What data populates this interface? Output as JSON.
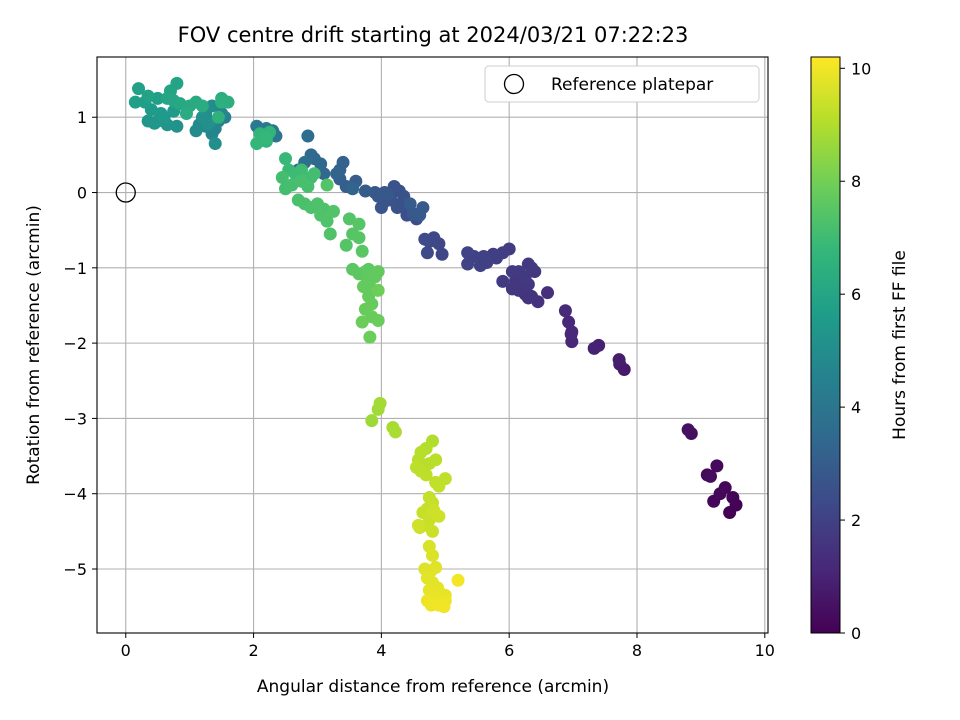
{
  "chart_data": {
    "type": "scatter",
    "title": "FOV centre drift starting at 2024/03/21 07:22:23",
    "xlabel": "Angular distance from reference (arcmin)",
    "ylabel": "Rotation from reference (arcmin)",
    "xlim": [
      -0.45,
      10.05
    ],
    "ylim": [
      -5.85,
      1.8
    ],
    "xticks": [
      0,
      2,
      4,
      6,
      8,
      10
    ],
    "yticks": [
      -5,
      -4,
      -3,
      -2,
      -1,
      0,
      1
    ],
    "grid": true,
    "legend": {
      "placement": "top-right",
      "label": "Reference platepar"
    },
    "reference_point": {
      "x": 0,
      "y": 0
    },
    "colorbar": {
      "label": "Hours from first FF file",
      "colormap": "viridis",
      "range": [
        0,
        10.2
      ],
      "ticks": [
        0,
        2,
        4,
        6,
        8,
        10
      ]
    },
    "colormap_stops": [
      "#440154",
      "#482878",
      "#3e4989",
      "#31688e",
      "#26828e",
      "#1f9e89",
      "#35b779",
      "#6ece58",
      "#b5de2b",
      "#fde725"
    ],
    "points": [
      [
        9.45,
        -4.25,
        0.02
      ],
      [
        9.55,
        -4.15,
        0.05
      ],
      [
        9.5,
        -4.05,
        0.08
      ],
      [
        9.38,
        -3.92,
        0.12
      ],
      [
        9.2,
        -4.1,
        0.15
      ],
      [
        9.3,
        -4.0,
        0.18
      ],
      [
        9.1,
        -3.75,
        0.22
      ],
      [
        9.25,
        -3.63,
        0.25
      ],
      [
        9.15,
        -3.77,
        0.28
      ],
      [
        8.85,
        -3.2,
        0.4
      ],
      [
        8.8,
        -3.15,
        0.45
      ],
      [
        7.8,
        -2.35,
        0.7
      ],
      [
        7.73,
        -2.28,
        0.75
      ],
      [
        7.72,
        -2.22,
        0.8
      ],
      [
        7.4,
        -2.03,
        0.9
      ],
      [
        7.33,
        -2.07,
        0.95
      ],
      [
        6.98,
        -1.98,
        1.1
      ],
      [
        6.97,
        -1.88,
        1.12
      ],
      [
        6.98,
        -1.85,
        1.14
      ],
      [
        6.93,
        -1.72,
        1.18
      ],
      [
        6.88,
        -1.57,
        1.22
      ],
      [
        6.6,
        -1.33,
        1.4
      ],
      [
        6.45,
        -1.45,
        1.45
      ],
      [
        6.35,
        -1.38,
        1.5
      ],
      [
        6.3,
        -1.4,
        1.52
      ],
      [
        6.25,
        -1.35,
        1.55
      ],
      [
        6.15,
        -1.3,
        1.58
      ],
      [
        6.05,
        -1.28,
        1.6
      ],
      [
        6.1,
        -1.18,
        1.62
      ],
      [
        6.2,
        -1.15,
        1.64
      ],
      [
        6.3,
        -1.22,
        1.66
      ],
      [
        6.4,
        -1.05,
        1.68
      ],
      [
        6.35,
        -1.0,
        1.7
      ],
      [
        6.3,
        -0.95,
        1.72
      ],
      [
        6.15,
        -1.05,
        1.74
      ],
      [
        6.25,
        -1.12,
        1.76
      ],
      [
        6.05,
        -1.05,
        1.78
      ],
      [
        5.9,
        -1.18,
        1.8
      ],
      [
        6.0,
        -0.75,
        1.85
      ],
      [
        5.9,
        -0.8,
        1.88
      ],
      [
        5.8,
        -0.87,
        1.9
      ],
      [
        5.75,
        -0.82,
        1.92
      ],
      [
        5.65,
        -0.93,
        1.95
      ],
      [
        5.6,
        -0.85,
        1.98
      ],
      [
        5.55,
        -0.97,
        2.0
      ],
      [
        5.45,
        -0.85,
        2.02
      ],
      [
        5.35,
        -0.8,
        2.05
      ],
      [
        5.35,
        -0.95,
        2.08
      ],
      [
        4.95,
        -0.82,
        2.15
      ],
      [
        4.9,
        -0.68,
        2.2
      ],
      [
        4.82,
        -0.6,
        2.22
      ],
      [
        4.75,
        -0.65,
        2.25
      ],
      [
        4.72,
        -0.8,
        2.28
      ],
      [
        4.68,
        -0.62,
        2.3
      ],
      [
        4.55,
        -0.35,
        2.4
      ],
      [
        4.45,
        -0.25,
        2.45
      ],
      [
        4.4,
        -0.3,
        2.48
      ],
      [
        4.35,
        -0.18,
        2.5
      ],
      [
        4.3,
        -0.15,
        2.52
      ],
      [
        4.25,
        -0.2,
        2.55
      ],
      [
        4.35,
        -0.05,
        2.58
      ],
      [
        4.28,
        0.02,
        2.6
      ],
      [
        4.2,
        0.08,
        2.62
      ],
      [
        4.15,
        -0.1,
        2.65
      ],
      [
        4.1,
        -0.05,
        2.68
      ],
      [
        4.05,
        -0.12,
        2.7
      ],
      [
        4.0,
        -0.2,
        2.72
      ],
      [
        4.05,
        0.0,
        2.75
      ],
      [
        3.95,
        -0.05,
        2.78
      ],
      [
        3.9,
        0.0,
        2.8
      ],
      [
        4.1,
        -0.02,
        2.82
      ],
      [
        4.65,
        -0.2,
        2.85
      ],
      [
        4.6,
        -0.3,
        2.88
      ],
      [
        4.5,
        -0.28,
        2.9
      ],
      [
        4.45,
        -0.15,
        2.92
      ],
      [
        3.75,
        0.02,
        2.95
      ],
      [
        3.6,
        0.15,
        3.0
      ],
      [
        3.45,
        0.08,
        3.05
      ],
      [
        3.35,
        0.18,
        3.1
      ],
      [
        3.4,
        0.4,
        3.15
      ],
      [
        3.35,
        0.3,
        3.2
      ],
      [
        3.3,
        0.25,
        3.25
      ],
      [
        3.55,
        0.05,
        3.3
      ],
      [
        3.1,
        0.25,
        3.35
      ],
      [
        3.05,
        0.38,
        3.4
      ],
      [
        2.95,
        0.45,
        3.45
      ],
      [
        2.9,
        0.5,
        3.5
      ],
      [
        2.85,
        0.75,
        3.6
      ],
      [
        2.8,
        0.4,
        3.7
      ],
      [
        2.7,
        0.3,
        3.8
      ],
      [
        2.35,
        0.75,
        4.0
      ],
      [
        2.3,
        0.82,
        4.1
      ],
      [
        2.2,
        0.85,
        4.15
      ],
      [
        2.05,
        0.88,
        4.2
      ],
      [
        1.55,
        1.0,
        4.5
      ],
      [
        1.45,
        0.95,
        4.55
      ],
      [
        1.4,
        0.85,
        4.6
      ],
      [
        1.35,
        0.78,
        4.65
      ],
      [
        1.5,
        1.05,
        4.7
      ],
      [
        1.3,
        0.95,
        4.75
      ],
      [
        1.25,
        0.88,
        4.8
      ],
      [
        1.15,
        0.9,
        4.85
      ],
      [
        1.1,
        0.82,
        4.9
      ],
      [
        1.35,
        1.15,
        4.95
      ],
      [
        1.25,
        1.05,
        5.0
      ],
      [
        1.4,
        0.65,
        5.05
      ],
      [
        1.2,
        1.0,
        5.1
      ],
      [
        1.3,
        0.92,
        5.15
      ],
      [
        0.8,
        0.88,
        5.2
      ],
      [
        0.65,
        0.9,
        5.25
      ],
      [
        0.5,
        0.95,
        5.3
      ],
      [
        0.45,
        0.92,
        5.35
      ],
      [
        0.35,
        0.95,
        5.4
      ],
      [
        0.6,
        1.0,
        5.45
      ],
      [
        0.55,
        1.05,
        5.5
      ],
      [
        0.75,
        1.08,
        5.55
      ],
      [
        0.4,
        1.1,
        5.6
      ],
      [
        0.3,
        1.2,
        5.65
      ],
      [
        0.5,
        1.25,
        5.7
      ],
      [
        0.15,
        1.2,
        5.75
      ],
      [
        0.2,
        1.38,
        5.8
      ],
      [
        0.35,
        1.28,
        5.85
      ],
      [
        0.8,
        1.45,
        5.9
      ],
      [
        0.7,
        1.35,
        5.95
      ],
      [
        0.65,
        1.25,
        6.0
      ],
      [
        0.75,
        1.22,
        6.05
      ],
      [
        0.85,
        1.18,
        6.1
      ],
      [
        1.0,
        1.15,
        6.15
      ],
      [
        1.1,
        1.2,
        6.2
      ],
      [
        0.95,
        1.05,
        6.25
      ],
      [
        1.2,
        1.15,
        6.3
      ],
      [
        1.5,
        1.25,
        6.35
      ],
      [
        1.6,
        1.2,
        6.4
      ],
      [
        1.5,
        1.2,
        6.45
      ],
      [
        1.45,
        1.0,
        6.5
      ],
      [
        2.2,
        0.68,
        6.6
      ],
      [
        2.25,
        0.8,
        6.65
      ],
      [
        2.1,
        0.78,
        6.7
      ],
      [
        2.05,
        0.65,
        6.75
      ],
      [
        2.2,
        0.72,
        6.8
      ],
      [
        2.5,
        0.45,
        6.85
      ],
      [
        2.55,
        0.3,
        6.9
      ],
      [
        2.65,
        0.25,
        6.95
      ],
      [
        2.75,
        0.3,
        7.0
      ],
      [
        2.9,
        0.2,
        7.05
      ],
      [
        2.95,
        0.25,
        7.08
      ],
      [
        2.45,
        0.2,
        7.1
      ],
      [
        2.5,
        0.05,
        7.12
      ],
      [
        2.6,
        0.1,
        7.15
      ],
      [
        2.75,
        0.15,
        7.18
      ],
      [
        2.85,
        0.08,
        7.2
      ],
      [
        2.7,
        -0.1,
        7.22
      ],
      [
        2.8,
        -0.15,
        7.24
      ],
      [
        2.9,
        -0.2,
        7.26
      ],
      [
        3.0,
        -0.15,
        7.28
      ],
      [
        3.1,
        -0.22,
        7.3
      ],
      [
        3.15,
        -0.38,
        7.32
      ],
      [
        3.05,
        -0.3,
        7.34
      ],
      [
        3.2,
        -0.55,
        7.36
      ],
      [
        3.25,
        -0.25,
        7.38
      ],
      [
        3.15,
        0.1,
        7.4
      ],
      [
        3.45,
        -0.7,
        7.42
      ],
      [
        3.5,
        -0.35,
        7.44
      ],
      [
        3.55,
        -0.55,
        7.46
      ],
      [
        3.65,
        -0.42,
        7.48
      ],
      [
        3.65,
        -0.6,
        7.5
      ],
      [
        3.7,
        -0.78,
        7.52
      ],
      [
        3.55,
        -1.02,
        7.55
      ],
      [
        3.65,
        -1.08,
        7.58
      ],
      [
        3.75,
        -1.05,
        7.6
      ],
      [
        3.8,
        -1.02,
        7.62
      ],
      [
        3.78,
        -1.15,
        7.64
      ],
      [
        3.85,
        -1.1,
        7.66
      ],
      [
        3.9,
        -1.12,
        7.68
      ],
      [
        3.95,
        -1.05,
        7.7
      ],
      [
        3.82,
        -1.25,
        7.72
      ],
      [
        3.72,
        -1.25,
        7.74
      ],
      [
        3.8,
        -1.38,
        7.76
      ],
      [
        3.85,
        -1.48,
        7.78
      ],
      [
        3.75,
        -1.55,
        7.8
      ],
      [
        3.85,
        -1.65,
        7.82
      ],
      [
        3.95,
        -1.7,
        7.84
      ],
      [
        3.7,
        -1.72,
        7.86
      ],
      [
        3.82,
        -1.92,
        7.88
      ],
      [
        3.95,
        -1.3,
        7.9
      ],
      [
        3.85,
        -3.03,
        8.7
      ],
      [
        3.95,
        -2.88,
        8.75
      ],
      [
        3.98,
        -2.8,
        8.8
      ],
      [
        4.18,
        -3.12,
        8.85
      ],
      [
        4.22,
        -3.18,
        8.9
      ],
      [
        4.8,
        -3.3,
        9.0
      ],
      [
        4.7,
        -3.4,
        9.05
      ],
      [
        4.62,
        -3.45,
        9.08
      ],
      [
        4.58,
        -3.55,
        9.1
      ],
      [
        4.75,
        -3.6,
        9.12
      ],
      [
        4.85,
        -3.55,
        9.14
      ],
      [
        4.55,
        -3.65,
        9.16
      ],
      [
        4.62,
        -3.7,
        9.18
      ],
      [
        4.7,
        -3.75,
        9.2
      ],
      [
        4.85,
        -3.85,
        9.22
      ],
      [
        5.0,
        -3.8,
        9.24
      ],
      [
        4.9,
        -3.9,
        9.26
      ],
      [
        4.75,
        -4.05,
        9.28
      ],
      [
        4.8,
        -4.12,
        9.3
      ],
      [
        4.72,
        -4.2,
        9.32
      ],
      [
        4.65,
        -4.25,
        9.34
      ],
      [
        4.75,
        -4.35,
        9.36
      ],
      [
        4.7,
        -4.42,
        9.38
      ],
      [
        4.6,
        -4.45,
        9.4
      ],
      [
        4.8,
        -4.5,
        9.42
      ],
      [
        4.9,
        -4.3,
        9.44
      ],
      [
        4.82,
        -4.22,
        9.46
      ],
      [
        4.58,
        -4.42,
        9.48
      ],
      [
        4.75,
        -4.7,
        9.6
      ],
      [
        4.8,
        -4.82,
        9.65
      ],
      [
        4.68,
        -5.0,
        9.7
      ],
      [
        4.78,
        -5.02,
        9.72
      ],
      [
        4.85,
        -4.98,
        9.74
      ],
      [
        4.72,
        -5.12,
        9.76
      ],
      [
        4.8,
        -5.18,
        9.78
      ],
      [
        4.88,
        -5.25,
        9.8
      ],
      [
        4.75,
        -5.28,
        9.82
      ],
      [
        4.92,
        -5.32,
        9.84
      ],
      [
        5.0,
        -5.35,
        9.86
      ],
      [
        4.85,
        -5.38,
        9.88
      ],
      [
        4.95,
        -5.45,
        9.9
      ],
      [
        5.0,
        -5.42,
        9.92
      ],
      [
        4.72,
        -5.42,
        9.94
      ],
      [
        4.78,
        -5.48,
        9.96
      ],
      [
        4.9,
        -5.48,
        9.98
      ],
      [
        4.98,
        -5.5,
        10.0
      ],
      [
        5.2,
        -5.15,
        10.05
      ]
    ]
  }
}
